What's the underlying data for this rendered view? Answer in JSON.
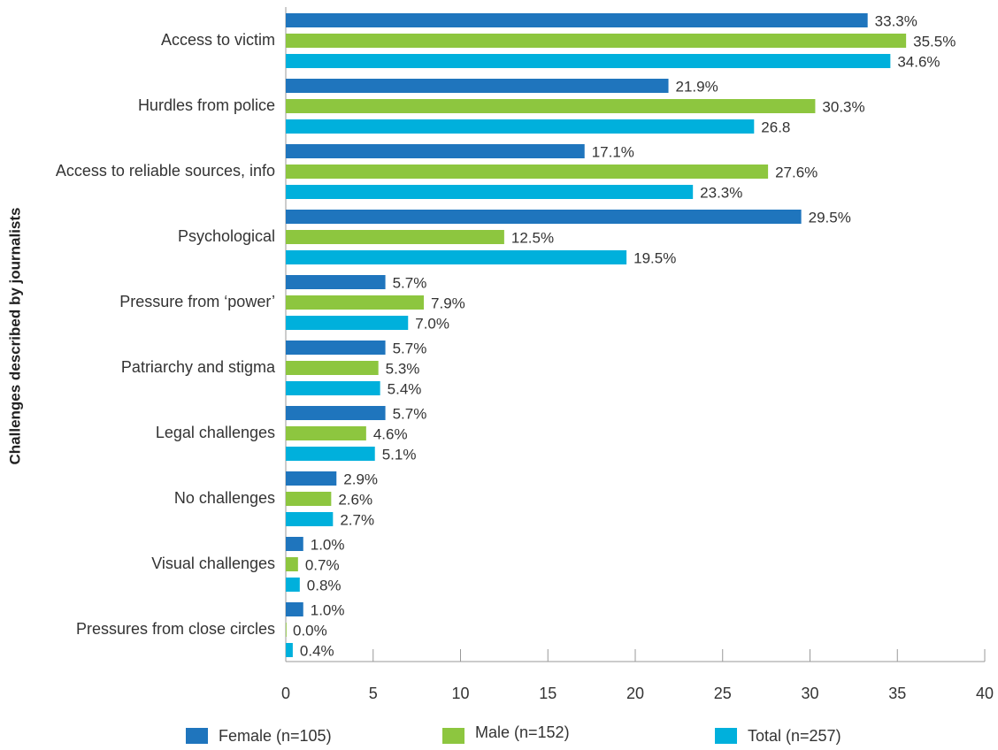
{
  "chart_data": {
    "type": "bar",
    "orientation": "horizontal",
    "y_axis_label": "Challenges described by journalists",
    "categories": [
      "Access to victim",
      "Hurdles from police",
      "Access to reliable sources, info",
      "Psychological",
      "Pressure from ‘power’",
      "Patriarchy and stigma",
      "Legal challenges",
      "No challenges",
      "Visual challenges",
      "Pressures from close circles"
    ],
    "series": [
      {
        "name": "Female (n=105)",
        "color": "#1f75bd",
        "values": [
          33.3,
          21.9,
          17.1,
          29.5,
          5.7,
          5.7,
          5.7,
          2.9,
          1.0,
          1.0
        ],
        "value_labels": [
          "33.3%",
          "21.9%",
          "17.1%",
          "29.5%",
          "5.7%",
          "5.7%",
          "5.7%",
          "2.9%",
          "1.0%",
          "1.0%"
        ]
      },
      {
        "name": "Male (n=152)",
        "color": "#8dc63f",
        "values": [
          35.5,
          30.3,
          27.6,
          12.5,
          7.9,
          5.3,
          4.6,
          2.6,
          0.7,
          0.0
        ],
        "value_labels": [
          "35.5%",
          "30.3%",
          "27.6%",
          "12.5%",
          "7.9%",
          "5.3%",
          "4.6%",
          "2.6%",
          "0.7%",
          "0.0%"
        ]
      },
      {
        "name": "Total (n=257)",
        "color": "#00b0dc",
        "values": [
          34.6,
          26.8,
          23.3,
          19.5,
          7.0,
          5.4,
          5.1,
          2.7,
          0.8,
          0.4
        ],
        "value_labels": [
          "34.6%",
          "26.8",
          "23.3%",
          "19.5%",
          "7.0%",
          "5.4%",
          "5.1%",
          "2.7%",
          "0.8%",
          "0.4%"
        ]
      }
    ],
    "xlim": [
      0,
      40
    ],
    "xticks": [
      0,
      5,
      10,
      15,
      20,
      25,
      30,
      35,
      40
    ],
    "grid": false,
    "legend": "bottom"
  }
}
